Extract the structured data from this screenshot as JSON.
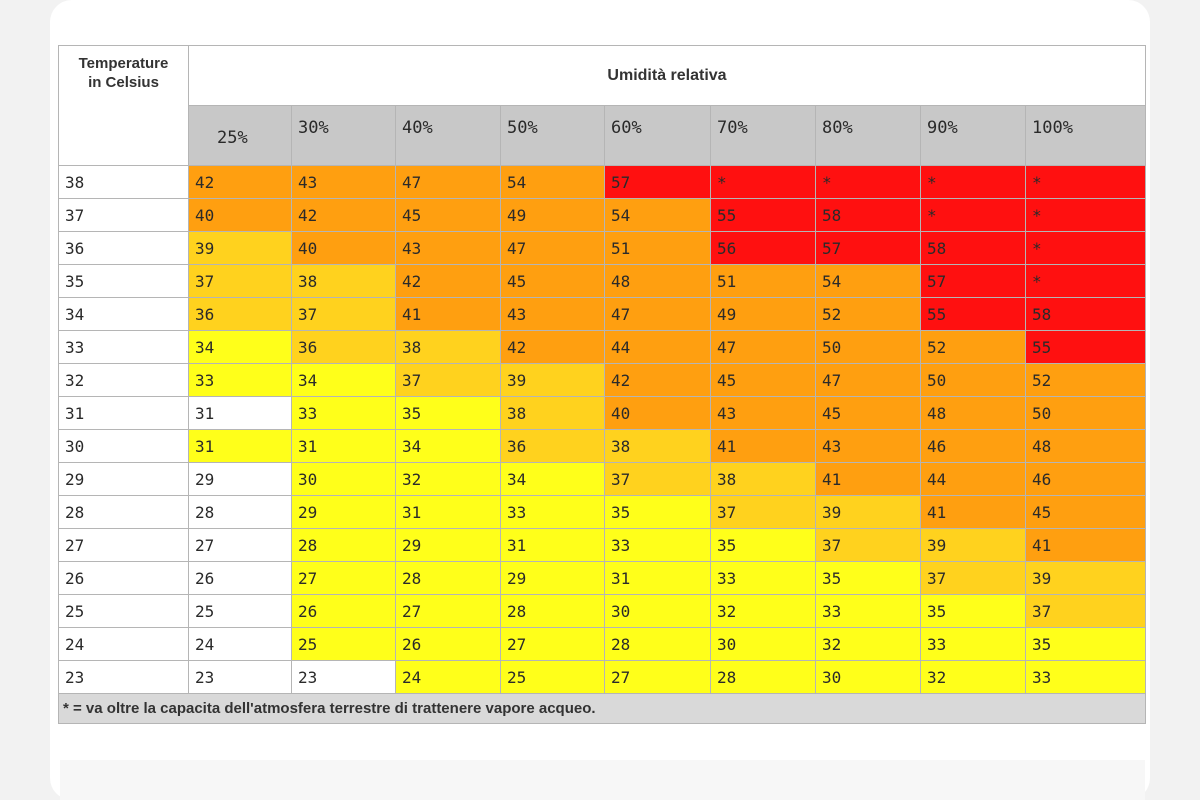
{
  "table": {
    "corner_label": [
      "Temperature",
      "in Celsius"
    ],
    "group_label": "Umidità relativa",
    "columns": [
      "25%",
      "30%",
      "40%",
      "50%",
      "60%",
      "70%",
      "80%",
      "90%",
      "100%"
    ],
    "rows": [
      {
        "temp": "38",
        "cells": [
          "42",
          "43",
          "47",
          "54",
          "57",
          "*",
          "*",
          "*",
          "*"
        ]
      },
      {
        "temp": "37",
        "cells": [
          "40",
          "42",
          "45",
          "49",
          "54",
          "55",
          "58",
          "*",
          "*"
        ]
      },
      {
        "temp": "36",
        "cells": [
          "39",
          "40",
          "43",
          "47",
          "51",
          "56",
          "57",
          "58",
          "*"
        ]
      },
      {
        "temp": "35",
        "cells": [
          "37",
          "38",
          "42",
          "45",
          "48",
          "51",
          "54",
          "57",
          "*"
        ]
      },
      {
        "temp": "34",
        "cells": [
          "36",
          "37",
          "41",
          "43",
          "47",
          "49",
          "52",
          "55",
          "58"
        ]
      },
      {
        "temp": "33",
        "cells": [
          "34",
          "36",
          "38",
          "42",
          "44",
          "47",
          "50",
          "52",
          "55"
        ]
      },
      {
        "temp": "32",
        "cells": [
          "33",
          "34",
          "37",
          "39",
          "42",
          "45",
          "47",
          "50",
          "52"
        ]
      },
      {
        "temp": "31",
        "cells": [
          "31",
          "33",
          "35",
          "38",
          "40",
          "43",
          "45",
          "48",
          "50"
        ]
      },
      {
        "temp": "30",
        "cells": [
          "31",
          "31",
          "34",
          "36",
          "38",
          "41",
          "43",
          "46",
          "48"
        ]
      },
      {
        "temp": "29",
        "cells": [
          "29",
          "30",
          "32",
          "34",
          "37",
          "38",
          "41",
          "44",
          "46"
        ]
      },
      {
        "temp": "28",
        "cells": [
          "28",
          "29",
          "31",
          "33",
          "35",
          "37",
          "39",
          "41",
          "45"
        ]
      },
      {
        "temp": "27",
        "cells": [
          "27",
          "28",
          "29",
          "31",
          "33",
          "35",
          "37",
          "39",
          "41"
        ]
      },
      {
        "temp": "26",
        "cells": [
          "26",
          "27",
          "28",
          "29",
          "31",
          "33",
          "35",
          "37",
          "39"
        ]
      },
      {
        "temp": "25",
        "cells": [
          "25",
          "26",
          "27",
          "28",
          "30",
          "32",
          "33",
          "35",
          "37"
        ]
      },
      {
        "temp": "24",
        "cells": [
          "24",
          "25",
          "26",
          "27",
          "28",
          "30",
          "32",
          "33",
          "35"
        ]
      },
      {
        "temp": "23",
        "cells": [
          "23",
          "23",
          "24",
          "25",
          "27",
          "28",
          "30",
          "32",
          "33"
        ]
      }
    ],
    "footnote": "* = va oltre la capacita dell'atmosfera terrestre di trattenere vapore acqueo."
  },
  "colors": {
    "white": "#ffffff",
    "yellow": "#ffff1a",
    "yellow_orange": "#ffd21e",
    "orange": "#ff9f10",
    "red": "#ff1010",
    "header_grey": "#c8c8c8",
    "footnote_grey": "#d9d9d9"
  }
}
